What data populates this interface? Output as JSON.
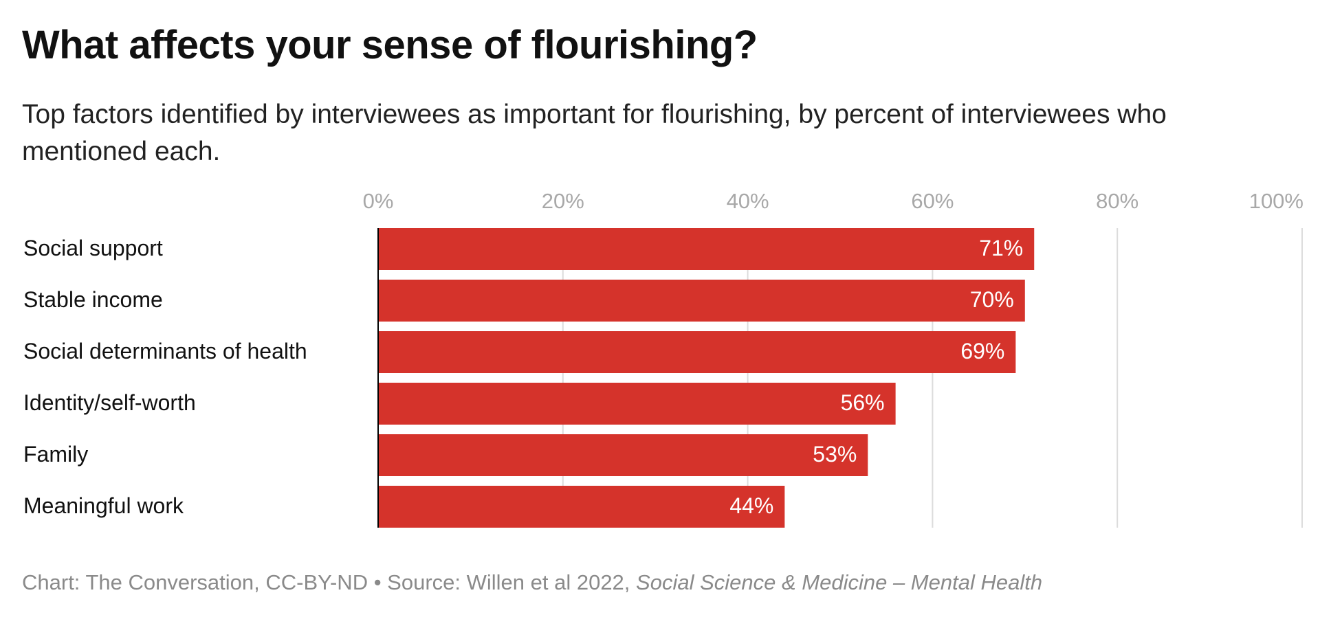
{
  "chart_data": {
    "type": "bar",
    "orientation": "horizontal",
    "title": "What affects your sense of flourishing?",
    "subtitle": "Top factors identified by interviewees as important for flourishing, by percent of interviewees who mentioned each.",
    "categories": [
      "Social support",
      "Stable income",
      "Social determinants of health",
      "Identity/self-worth",
      "Family",
      "Meaningful work"
    ],
    "values": [
      71,
      70,
      69,
      56,
      53,
      44
    ],
    "value_labels": [
      "71%",
      "70%",
      "69%",
      "56%",
      "53%",
      "44%"
    ],
    "color": "#d5332b",
    "xlim": [
      0,
      100
    ],
    "xticks": [
      {
        "value": 0,
        "label": "0%"
      },
      {
        "value": 20,
        "label": "20%"
      },
      {
        "value": 40,
        "label": "40%"
      },
      {
        "value": 60,
        "label": "60%"
      },
      {
        "value": 80,
        "label": "80%"
      },
      {
        "value": 100,
        "label": "100%"
      }
    ],
    "grid": true,
    "source": "Chart: The Conversation, CC-BY-ND • Source: Willen et al 2022, ",
    "source_journal": "Social Science & Medicine – Mental Health"
  }
}
